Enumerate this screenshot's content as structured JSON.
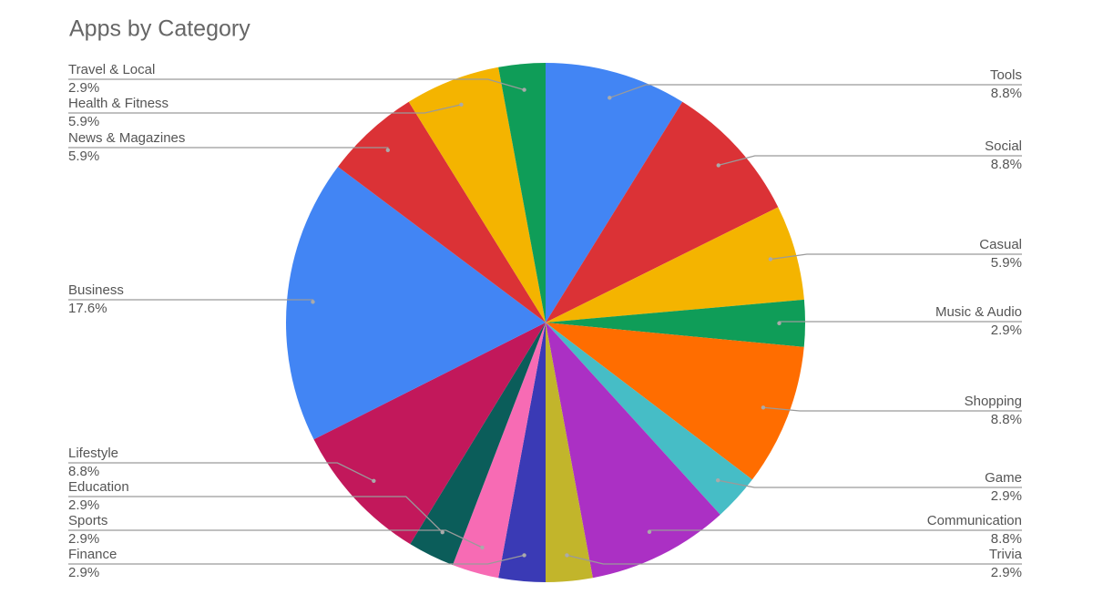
{
  "chart_data": {
    "type": "pie",
    "title": "Apps by Category",
    "categories": [
      "Tools",
      "Social",
      "Casual",
      "Music & Audio",
      "Shopping",
      "Game",
      "Communication",
      "Trivia",
      "Finance",
      "Sports",
      "Education",
      "Lifestyle",
      "Business",
      "News & Magazines",
      "Health & Fitness",
      "Travel & Local"
    ],
    "values": [
      8.8,
      8.8,
      5.9,
      2.9,
      8.8,
      2.9,
      8.8,
      2.9,
      2.9,
      2.9,
      2.9,
      8.8,
      17.6,
      5.9,
      5.9,
      2.9
    ],
    "value_labels": [
      "8.8%",
      "8.8%",
      "5.9%",
      "2.9%",
      "8.8%",
      "2.9%",
      "8.8%",
      "2.9%",
      "2.9%",
      "2.9%",
      "2.9%",
      "8.8%",
      "17.6%",
      "5.9%",
      "5.9%",
      "2.9%"
    ],
    "colors": [
      "#4285f4",
      "#db3236",
      "#f4b400",
      "#0f9d58",
      "#ff6d00",
      "#46bdc6",
      "#ab30c4",
      "#c2b52b",
      "#3a3ab5",
      "#f76bb4",
      "#0b5d5a",
      "#c2185b",
      "#4285f4",
      "#db3236",
      "#f4b400",
      "#0f9d58"
    ]
  }
}
